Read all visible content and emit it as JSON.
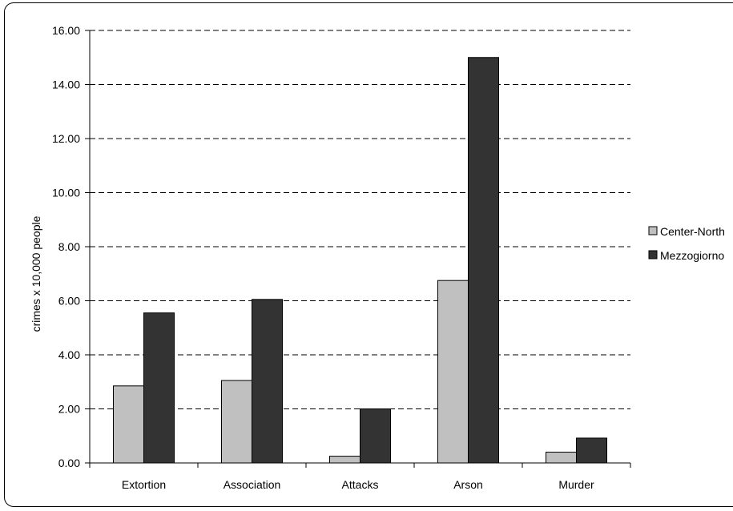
{
  "chart_data": {
    "type": "bar",
    "categories": [
      "Extortion",
      "Association",
      "Attacks",
      "Arson",
      "Murder"
    ],
    "series": [
      {
        "name": "Center-North",
        "color": "#c0c0c0",
        "values": [
          2.85,
          3.05,
          0.25,
          6.75,
          0.4
        ]
      },
      {
        "name": "Mezzogiorno",
        "color": "#333333",
        "values": [
          5.55,
          6.05,
          2.0,
          15.0,
          0.92
        ]
      }
    ],
    "xlabel": "",
    "ylabel": "crimes x 10,000 people",
    "ylim": [
      0,
      16
    ],
    "yticks": [
      "0.00",
      "2.00",
      "4.00",
      "6.00",
      "8.00",
      "10.00",
      "12.00",
      "14.00",
      "16.00"
    ],
    "grid": true,
    "legend": "right"
  }
}
